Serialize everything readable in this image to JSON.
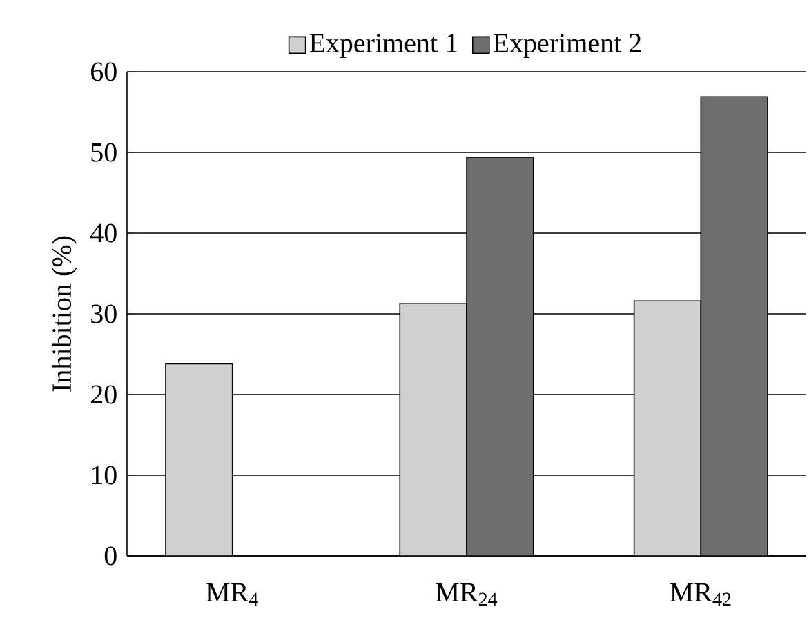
{
  "chart_data": {
    "type": "bar",
    "ylabel": "Inhibition (%)",
    "categories": [
      "MR$_{4}$",
      "MR$_{24}$",
      "MR$_{42}$"
    ],
    "series": [
      {
        "name": "Experiment 1",
        "color": "#d0d0d0",
        "values": [
          23.8,
          31.3,
          31.6
        ]
      },
      {
        "name": "Experiment 2",
        "color": "#6e6e6e",
        "values": [
          null,
          49.4,
          56.9
        ]
      }
    ],
    "ylim": [
      0,
      60
    ],
    "yticks": [
      0,
      10,
      20,
      30,
      40,
      50,
      60
    ],
    "grid": "y",
    "legend": "top"
  }
}
